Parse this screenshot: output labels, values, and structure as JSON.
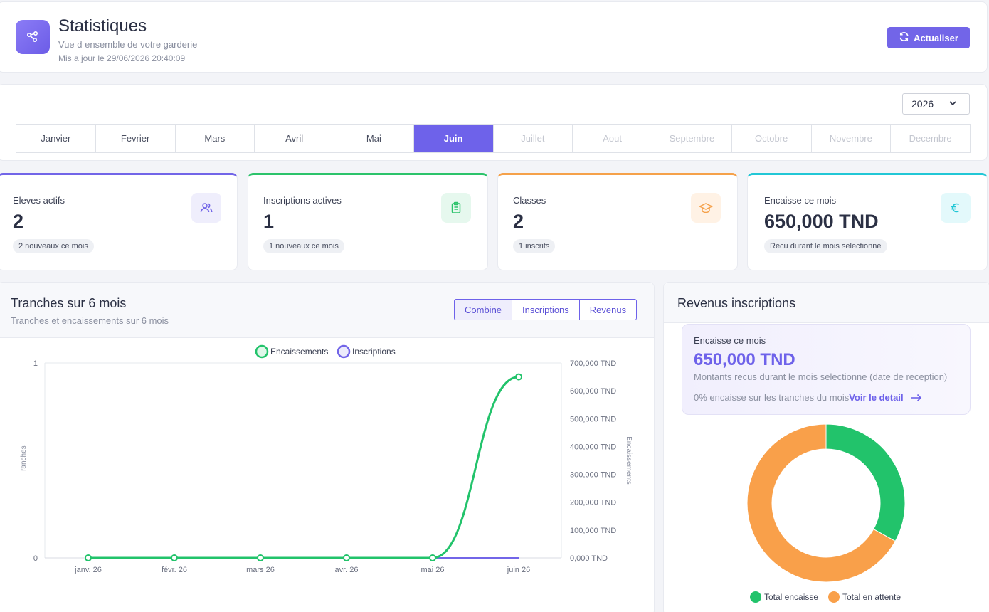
{
  "header": {
    "title": "Statistiques",
    "subtitle": "Vue d ensemble de votre garderie",
    "updated": "Mis a jour le 29/06/2026 20:40:09",
    "refresh_label": "Actualiser"
  },
  "filters": {
    "year": "2026",
    "months": [
      {
        "label": "Janvier",
        "state": "enabled"
      },
      {
        "label": "Fevrier",
        "state": "enabled"
      },
      {
        "label": "Mars",
        "state": "enabled"
      },
      {
        "label": "Avril",
        "state": "enabled"
      },
      {
        "label": "Mai",
        "state": "enabled"
      },
      {
        "label": "Juin",
        "state": "active"
      },
      {
        "label": "Juillet",
        "state": "disabled"
      },
      {
        "label": "Aout",
        "state": "disabled"
      },
      {
        "label": "Septembre",
        "state": "disabled"
      },
      {
        "label": "Octobre",
        "state": "disabled"
      },
      {
        "label": "Novembre",
        "state": "disabled"
      },
      {
        "label": "Decembre",
        "state": "disabled"
      }
    ]
  },
  "stats": [
    {
      "label": "Eleves actifs",
      "value": "2",
      "note": "2 nouveaux ce mois",
      "icon": "users-icon",
      "color": "#7265e8"
    },
    {
      "label": "Inscriptions actives",
      "value": "1",
      "note": "1 nouveaux ce mois",
      "icon": "clipboard-icon",
      "color": "#2cc36b"
    },
    {
      "label": "Classes",
      "value": "2",
      "note": "1 inscrits",
      "icon": "graduation-cap-icon",
      "color": "#f5a14a"
    },
    {
      "label": "Encaisse ce mois",
      "value": "650,000 TND",
      "note": "Recu durant le mois selectionne",
      "icon": "euro-icon",
      "color": "#22c7d6"
    }
  ],
  "tranches": {
    "title": "Tranches sur 6 mois",
    "subtitle": "Tranches et encaissements sur 6 mois",
    "toggle": [
      "Combine",
      "Inscriptions",
      "Revenus"
    ],
    "active_toggle": "Combine"
  },
  "chart_data": [
    {
      "type": "line",
      "categories": [
        "janv. 26",
        "févr. 26",
        "mars 26",
        "avr. 26",
        "mai 26",
        "juin 26"
      ],
      "legend": [
        "Encaissements",
        "Inscriptions"
      ],
      "legend_position": "top",
      "ylabel_left": "Tranches",
      "ylabel_right": "Encaissements",
      "left_ticks": [
        "0",
        "1"
      ],
      "right_ticks": [
        "0,000 TND",
        "100,000 TND",
        "200,000 TND",
        "300,000 TND",
        "400,000 TND",
        "500,000 TND",
        "600,000 TND",
        "700,000 TND"
      ],
      "ylim_left": [
        0,
        1
      ],
      "ylim_right": [
        0,
        700000
      ],
      "grid": true,
      "series": [
        {
          "name": "Encaissements",
          "axis": "right",
          "color": "#22c36b",
          "values": [
            0,
            0,
            0,
            0,
            0,
            650000
          ]
        },
        {
          "name": "Inscriptions",
          "axis": "left",
          "color": "#7265e8",
          "values": [
            0,
            0,
            0,
            0,
            0,
            0
          ]
        }
      ]
    },
    {
      "type": "pie",
      "donut": true,
      "legend_position": "bottom",
      "categories": [
        "Total encaisse",
        "Total en attente"
      ],
      "colors": [
        "#22c36b",
        "#f9a04a"
      ],
      "values": [
        33,
        67
      ]
    }
  ],
  "revenue": {
    "title": "Revenus inscriptions",
    "box_label": "Encaisse ce mois",
    "box_value": "650,000 TND",
    "box_desc": "Montants recus durant le mois selectionne (date de reception)",
    "box_pct": "0% encaisse sur les tranches du mois",
    "box_link": "Voir le detail"
  }
}
